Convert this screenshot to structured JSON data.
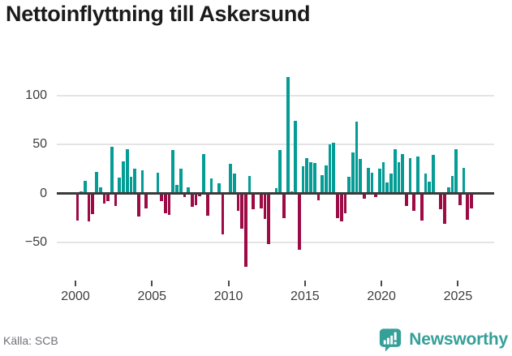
{
  "title": "Nettoinflyttning till Askersund",
  "source": "Källa: SCB",
  "brand": {
    "name": "Newsworthy",
    "icon": "newsworthy-speech-bubble-bar-chart-icon"
  },
  "colors": {
    "positive_bar": "#049c95",
    "negative_bar": "#9c0b45",
    "gridline": "#e4e4e4",
    "zero_axis": "#3a3a3a",
    "tick_label": "#3d3d3d",
    "title_text": "#1b1b1b",
    "source_text": "#6f6f78",
    "brand_teal": "#35a098"
  },
  "chart_data": {
    "type": "bar",
    "title": "Nettoinflyttning till Askersund",
    "source": "Källa: SCB",
    "frequency": "quarterly",
    "x_start": "2000-Q1",
    "x_end": "2025-Q4",
    "x_tick_labels": [
      "2000",
      "2005",
      "2010",
      "2015",
      "2020",
      "2025"
    ],
    "y_ticks": [
      100,
      50,
      0,
      -50
    ],
    "y_tick_labels": [
      "100",
      "50",
      "0",
      "−50"
    ],
    "ylim": [
      -85,
      132
    ],
    "grid": true,
    "legend": false,
    "values": [
      -28,
      2,
      13,
      -29,
      -21,
      22,
      6,
      -10,
      -8,
      48,
      -13,
      16,
      33,
      45,
      17,
      25,
      -24,
      24,
      -15,
      0,
      0,
      21,
      -8,
      -20,
      -22,
      44,
      9,
      25,
      -4,
      6,
      -14,
      -12,
      -3,
      40,
      -23,
      15,
      0,
      10,
      -42,
      0,
      30,
      20,
      -18,
      -36,
      -75,
      18,
      -16,
      0,
      -15,
      -26,
      -52,
      0,
      5,
      44,
      -25,
      119,
      2,
      74,
      -58,
      28,
      36,
      32,
      31,
      -7,
      19,
      29,
      50,
      52,
      -25,
      -29,
      -20,
      17,
      42,
      73,
      35,
      -5,
      26,
      21,
      -4,
      25,
      32,
      11,
      20,
      45,
      32,
      40,
      -13,
      36,
      -18,
      38,
      -28,
      20,
      12,
      39,
      0,
      -16,
      -31,
      6,
      18,
      45,
      -12,
      26,
      -27,
      -15
    ]
  }
}
